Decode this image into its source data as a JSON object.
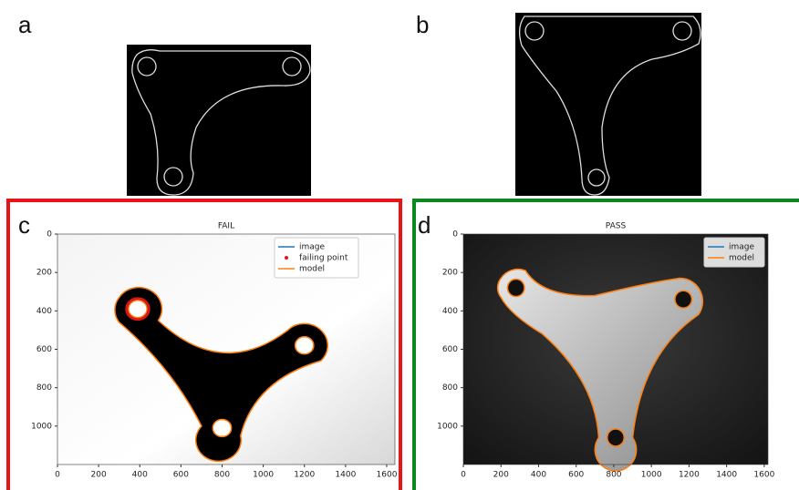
{
  "panels": [
    {
      "label": "a"
    },
    {
      "label": "b"
    },
    {
      "label": "c",
      "title": "FAIL",
      "legend": [
        "image",
        "failing point",
        "model"
      ],
      "xlim": [
        0,
        1640
      ],
      "ylim": [
        1200,
        0
      ],
      "xticks": [
        0,
        200,
        400,
        600,
        800,
        1000,
        1200,
        1400,
        1600
      ],
      "yticks": [
        0,
        200,
        400,
        600,
        800,
        1000
      ]
    },
    {
      "label": "d",
      "title": "PASS",
      "legend": [
        "image",
        "model"
      ],
      "xlim": [
        0,
        1620
      ],
      "ylim": [
        1200,
        0
      ],
      "xticks": [
        0,
        200,
        400,
        600,
        800,
        1000,
        1200,
        1400,
        1600
      ],
      "yticks": [
        0,
        200,
        400,
        600,
        800,
        1000
      ]
    }
  ]
}
